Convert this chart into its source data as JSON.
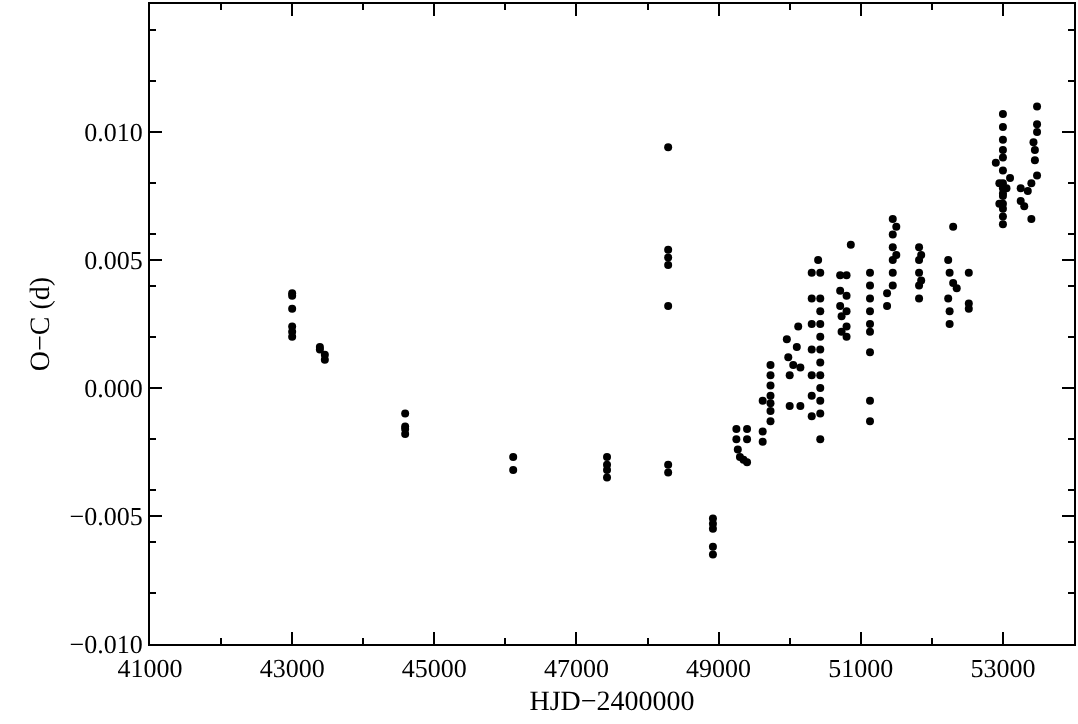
{
  "chart_data": {
    "type": "scatter",
    "xlabel": "HJD−2400000",
    "ylabel": "O−C (d)",
    "marker": "circle",
    "xlim": [
      41000,
      54000
    ],
    "ylim": [
      -0.01,
      0.015
    ],
    "xticks": [
      41000,
      43000,
      45000,
      47000,
      49000,
      51000,
      53000
    ],
    "yticks": [
      {
        "value": -0.01,
        "label": "−0.010"
      },
      {
        "value": -0.005,
        "label": "−0.005"
      },
      {
        "value": 0,
        "label": "0.000"
      },
      {
        "value": 0.005,
        "label": "0.005"
      },
      {
        "value": 0.01,
        "label": "0.010"
      }
    ],
    "series": [
      {
        "color": "#000000",
        "x": [
          43000,
          43000,
          43000,
          43000,
          43000,
          43000,
          43390,
          43390,
          43460,
          43460,
          44590,
          44590,
          44590,
          44590,
          46110,
          46110,
          47430,
          47430,
          47430,
          47430,
          48290,
          48290,
          48290,
          48290,
          48290,
          48290,
          48290,
          48920,
          48920,
          48920,
          48920,
          48920,
          49250,
          49250,
          49270,
          49300,
          49350,
          49400,
          49400,
          49400,
          49620,
          49620,
          49620,
          49730,
          49730,
          49730,
          49730,
          49730,
          49730,
          49730,
          49960,
          49980,
          50000,
          50050,
          50100,
          50120,
          50150,
          50000,
          50150,
          50310,
          50310,
          50310,
          50310,
          50310,
          50310,
          50310,
          50400,
          50430,
          50430,
          50430,
          50430,
          50430,
          50430,
          50430,
          50430,
          50430,
          50430,
          50430,
          50430,
          50710,
          50710,
          50710,
          50730,
          50730,
          50800,
          50800,
          50800,
          50800,
          50800,
          50860,
          51130,
          51130,
          51130,
          51130,
          51130,
          51130,
          51130,
          51130,
          51130,
          51370,
          51370,
          51450,
          51450,
          51450,
          51450,
          51450,
          51450,
          51500,
          51500,
          51820,
          51820,
          51820,
          51820,
          51820,
          51850,
          51850,
          52230,
          52250,
          52230,
          52250,
          52250,
          52300,
          52300,
          52350,
          52520,
          52520,
          52520,
          53000,
          53000,
          53000,
          53000,
          53000,
          53000,
          53000,
          53000,
          53000,
          53000,
          53000,
          53000,
          53000,
          52900,
          52950,
          52950,
          53000,
          53050,
          53100,
          53250,
          53250,
          53300,
          53350,
          53400,
          53400,
          53450,
          53450,
          53480,
          53480,
          53480,
          53430,
          53480
        ],
        "values": [
          0.0037,
          0.0036,
          0.0031,
          0.0024,
          0.0022,
          0.002,
          0.0016,
          0.0015,
          0.0013,
          0.0011,
          -0.001,
          -0.0015,
          -0.0016,
          -0.0018,
          -0.0027,
          -0.0032,
          -0.0027,
          -0.003,
          -0.0032,
          -0.0035,
          0.0094,
          0.0054,
          0.0051,
          0.0048,
          0.0032,
          -0.003,
          -0.0033,
          -0.0051,
          -0.0053,
          -0.0055,
          -0.0062,
          -0.0065,
          -0.0016,
          -0.002,
          -0.0024,
          -0.0027,
          -0.0028,
          -0.0029,
          -0.0016,
          -0.002,
          -0.0005,
          -0.0017,
          -0.0021,
          0.0009,
          0.0005,
          0.0001,
          -0.0003,
          -0.0006,
          -0.0009,
          -0.0013,
          0.0019,
          0.0012,
          0.0005,
          0.0009,
          0.0016,
          0.0024,
          -0.0007,
          -0.0007,
          0.0008,
          0.0045,
          0.0035,
          0.0025,
          0.0015,
          0.0005,
          -0.0003,
          -0.0011,
          0.005,
          0.0045,
          0.0035,
          0.003,
          0.0025,
          0.002,
          0.0015,
          0.001,
          0.0005,
          0.0,
          -0.0005,
          -0.001,
          -0.002,
          0.0044,
          0.0038,
          0.0032,
          0.0028,
          0.0022,
          0.0044,
          0.0036,
          0.003,
          0.0024,
          0.002,
          0.0056,
          0.0045,
          0.004,
          0.0035,
          0.003,
          0.0025,
          0.0022,
          0.0014,
          -0.0005,
          -0.0013,
          0.0032,
          0.0037,
          0.0066,
          0.006,
          0.0055,
          0.005,
          0.0045,
          0.004,
          0.0063,
          0.0052,
          0.0055,
          0.005,
          0.0045,
          0.004,
          0.0035,
          0.0052,
          0.0042,
          0.005,
          0.0045,
          0.0035,
          0.003,
          0.0025,
          0.0063,
          0.0041,
          0.0039,
          0.0045,
          0.0033,
          0.0031,
          0.0107,
          0.0102,
          0.0097,
          0.0093,
          0.009,
          0.0085,
          0.008,
          0.0078,
          0.0075,
          0.0072,
          0.007,
          0.0067,
          0.0064,
          0.0088,
          0.008,
          0.0072,
          0.0076,
          0.0078,
          0.0082,
          0.0078,
          0.0073,
          0.0071,
          0.0077,
          0.0066,
          0.008,
          0.0093,
          0.0089,
          0.011,
          0.0103,
          0.01,
          0.0096,
          0.0083
        ]
      }
    ]
  }
}
